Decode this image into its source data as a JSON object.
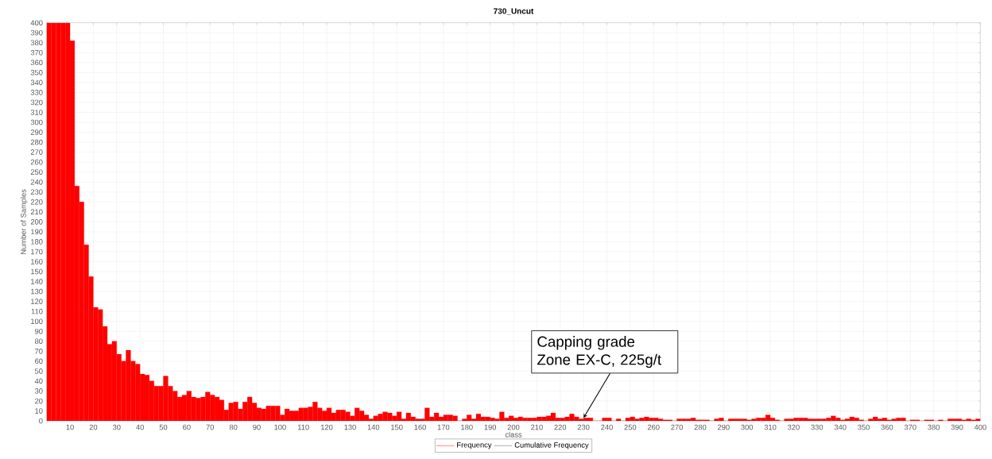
{
  "chart_data": {
    "type": "histogram",
    "title": "730_Uncut",
    "xlabel": "class",
    "ylabel": "Number of Samples",
    "bins": [
      0,
      2,
      4,
      6,
      8,
      10,
      12,
      14,
      16,
      18,
      20,
      22,
      24,
      26,
      28,
      30,
      32,
      34,
      36,
      38,
      40,
      42,
      44,
      46,
      48,
      50,
      52,
      54,
      56,
      58,
      60,
      62,
      64,
      66,
      68,
      70,
      72,
      74,
      76,
      78,
      80,
      82,
      84,
      86,
      88,
      90,
      92,
      94,
      96,
      98,
      100,
      102,
      104,
      106,
      108,
      110,
      112,
      114,
      116,
      118,
      120,
      122,
      124,
      126,
      128,
      130,
      132,
      134,
      136,
      138,
      140,
      142,
      144,
      146,
      148,
      150,
      152,
      154,
      156,
      158,
      160,
      162,
      164,
      166,
      168,
      170,
      172,
      174,
      176,
      178,
      180,
      182,
      184,
      186,
      188,
      190,
      192,
      194,
      196,
      198,
      200,
      202,
      204,
      206,
      208,
      210,
      212,
      214,
      216,
      218,
      220,
      222,
      224,
      226,
      228,
      230,
      232,
      234,
      236,
      238,
      240,
      242,
      244,
      246,
      248,
      250,
      252,
      254,
      256,
      258,
      260,
      262,
      264,
      266,
      268,
      270,
      272,
      274,
      276,
      278,
      280,
      282,
      284,
      286,
      288,
      290,
      292,
      294,
      296,
      298,
      300,
      302,
      304,
      306,
      308,
      310,
      312,
      314,
      316,
      318,
      320,
      322,
      324,
      326,
      328,
      330,
      332,
      334,
      336,
      338,
      340,
      342,
      344,
      346,
      348,
      350,
      352,
      354,
      356,
      358,
      360,
      362,
      364,
      366,
      368,
      370,
      372,
      374,
      376,
      378,
      380,
      382,
      384,
      386,
      388,
      390,
      392,
      394,
      396,
      398,
      400
    ],
    "series": [
      {
        "name": "Frequency",
        "color": "#ff0000",
        "values": [
          400,
          400,
          400,
          400,
          400,
          382,
          236,
          220,
          177,
          145,
          114,
          112,
          95,
          77,
          80,
          67,
          60,
          71,
          60,
          57,
          47,
          46,
          40,
          35,
          35,
          45,
          35,
          30,
          24,
          26,
          30,
          24,
          23,
          24,
          29,
          26,
          24,
          21,
          11,
          18,
          19,
          12,
          19,
          24,
          18,
          13,
          12,
          15,
          15,
          15,
          6,
          12,
          10,
          10,
          13,
          13,
          14,
          19,
          13,
          10,
          13,
          8,
          11,
          11,
          9,
          5,
          13,
          10,
          6,
          2,
          5,
          7,
          9,
          8,
          5,
          9,
          2,
          8,
          4,
          2,
          2,
          13,
          4,
          8,
          4,
          6,
          6,
          5,
          0,
          2,
          6,
          2,
          7,
          4,
          4,
          3,
          2,
          9,
          3,
          5,
          3,
          4,
          3,
          3,
          3,
          4,
          4,
          5,
          8,
          3,
          3,
          4,
          7,
          4,
          2,
          3,
          3,
          0,
          0,
          3,
          3,
          0,
          2,
          0,
          3,
          4,
          2,
          3,
          4,
          3,
          3,
          2,
          1,
          1,
          0,
          2,
          2,
          2,
          3,
          1,
          1,
          1,
          0,
          2,
          3,
          0,
          2,
          2,
          2,
          2,
          1,
          2,
          3,
          3,
          6,
          3,
          1,
          0,
          2,
          2,
          3,
          3,
          3,
          2,
          2,
          2,
          2,
          3,
          5,
          3,
          1,
          2,
          4,
          3,
          1,
          0,
          2,
          4,
          2,
          3,
          1,
          2,
          3,
          3,
          0,
          1,
          1,
          0,
          1,
          1,
          0,
          1,
          0,
          2,
          2,
          2,
          1,
          2,
          1,
          2
        ]
      }
    ],
    "annotations": [
      {
        "text": "Capping grade Zone EX-C, 225g/t",
        "x": 230,
        "y": 3
      },
      "Cumulative Frequency"
    ],
    "xlim": [
      0,
      400
    ],
    "ylim": [
      0,
      400
    ],
    "xticks": [
      10,
      20,
      30,
      40,
      50,
      60,
      70,
      80,
      90,
      100,
      110,
      120,
      130,
      140,
      150,
      160,
      170,
      180,
      190,
      200,
      210,
      220,
      230,
      240,
      250,
      260,
      270,
      280,
      290,
      300,
      310,
      320,
      330,
      340,
      350,
      360,
      370,
      380,
      390,
      400
    ],
    "yticks": [
      0,
      10,
      20,
      30,
      40,
      50,
      60,
      70,
      80,
      90,
      100,
      110,
      120,
      130,
      140,
      150,
      160,
      170,
      180,
      190,
      200,
      210,
      220,
      230,
      240,
      250,
      260,
      270,
      280,
      290,
      300,
      310,
      320,
      330,
      340,
      350,
      360,
      370,
      380,
      390,
      400
    ],
    "grid": true,
    "legend": "bottom"
  }
}
